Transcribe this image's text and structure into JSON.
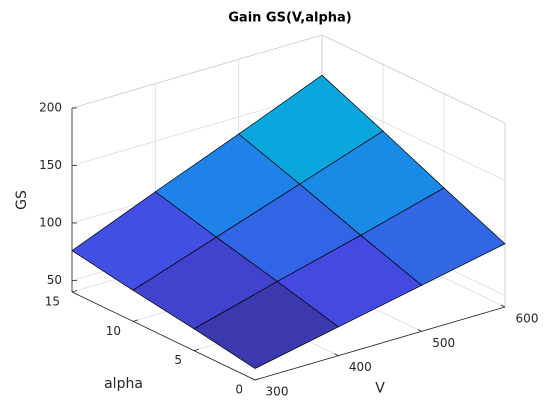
{
  "chart_data": {
    "type": "surface",
    "title": "Gain GS(V,alpha)",
    "xlabel": "V",
    "ylabel": "alpha",
    "zlabel": "GS",
    "x": [
      300,
      400,
      500,
      600
    ],
    "y": [
      0,
      5,
      10,
      15
    ],
    "z": [
      [
        50,
        65,
        80,
        95
      ],
      [
        59,
        79,
        98,
        118
      ],
      [
        67,
        92,
        117,
        142
      ],
      [
        76,
        106,
        135,
        165
      ]
    ],
    "xlim": [
      300,
      600
    ],
    "ylim": [
      0,
      15
    ],
    "zlim": [
      40,
      200
    ],
    "xticks": [
      300,
      400,
      500,
      600
    ],
    "yticks": [
      0,
      5,
      10,
      15
    ],
    "zticks": [
      50,
      100,
      150,
      200
    ],
    "colormap": "parula",
    "edgecolor": "#000000",
    "grid": true
  }
}
